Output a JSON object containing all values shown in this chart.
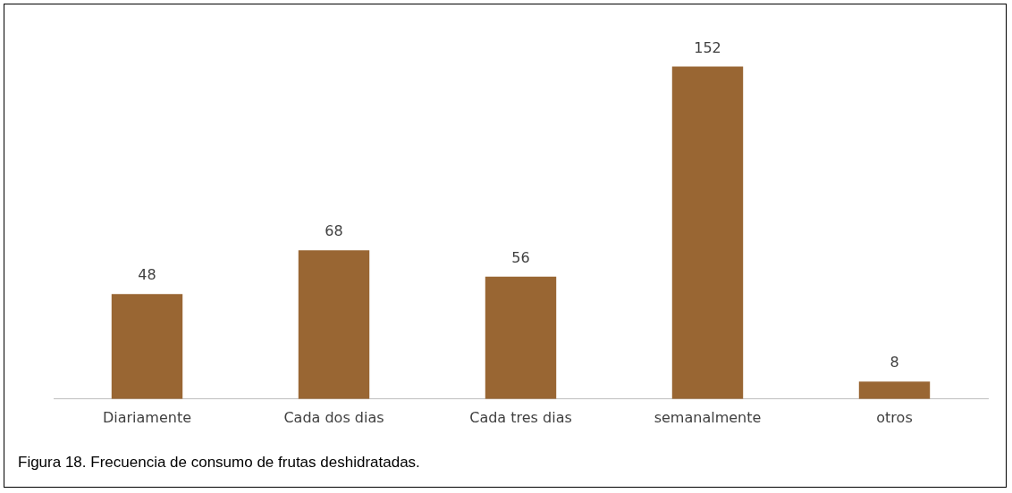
{
  "chart_data": {
    "type": "bar",
    "categories": [
      "Diariamente",
      "Cada dos dias",
      "Cada tres dias",
      "semanalmente",
      "otros"
    ],
    "values": [
      48,
      68,
      56,
      152,
      8
    ],
    "color": "#996633",
    "data_labels": true,
    "grid": false,
    "legend": false,
    "annotations": [
      "Figura 18.  Frecuencia de consumo de frutas deshidratadas."
    ]
  }
}
